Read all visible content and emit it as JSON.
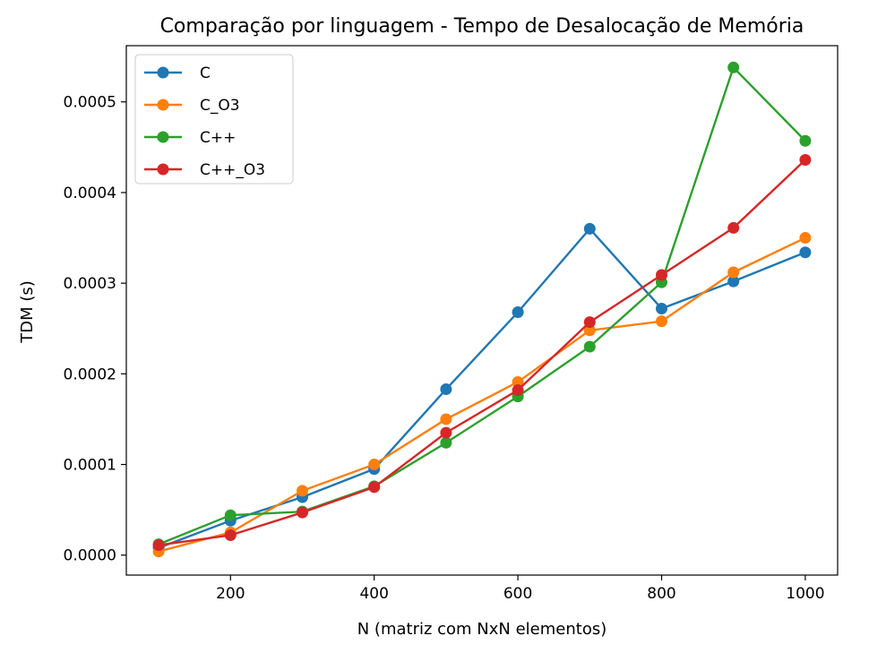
{
  "chart_data": {
    "type": "line",
    "title": "Comparação por linguagem - Tempo de Desalocação de Memória",
    "xlabel": "N (matriz com NxN elementos)",
    "ylabel": "TDM (s)",
    "x": [
      100,
      200,
      300,
      400,
      500,
      600,
      700,
      800,
      900,
      1000
    ],
    "xlim": [
      55,
      1045
    ],
    "ylim": [
      -2.2e-05,
      0.000562
    ],
    "xticks": [
      200,
      400,
      600,
      800,
      1000
    ],
    "xtick_labels": [
      "200",
      "400",
      "600",
      "800",
      "1000"
    ],
    "yticks": [
      0,
      0.0001,
      0.0002,
      0.0003,
      0.0004,
      0.0005
    ],
    "ytick_labels": [
      "0.0000",
      "0.0001",
      "0.0002",
      "0.0003",
      "0.0004",
      "0.0005"
    ],
    "grid": false,
    "legend_position": "top-left",
    "marker": "circle",
    "series": [
      {
        "name": "C",
        "color": "#1f77b4",
        "values": [
          8e-06,
          3.8e-05,
          6.4e-05,
          9.5e-05,
          0.000183,
          0.000268,
          0.00036,
          0.000272,
          0.000302,
          0.000334
        ]
      },
      {
        "name": "C_O3",
        "color": "#ff7f0e",
        "values": [
          4e-06,
          2.5e-05,
          7.1e-05,
          0.0001,
          0.00015,
          0.000191,
          0.000248,
          0.000258,
          0.000312,
          0.00035
        ]
      },
      {
        "name": "C++",
        "color": "#2ca02c",
        "values": [
          1.2e-05,
          4.4e-05,
          4.8e-05,
          7.6e-05,
          0.000124,
          0.000175,
          0.00023,
          0.000301,
          0.000538,
          0.000457
        ]
      },
      {
        "name": "C++_O3",
        "color": "#d62728",
        "values": [
          1.1e-05,
          2.2e-05,
          4.7e-05,
          7.5e-05,
          0.000135,
          0.000182,
          0.000257,
          0.000309,
          0.000361,
          0.000436
        ]
      }
    ]
  }
}
